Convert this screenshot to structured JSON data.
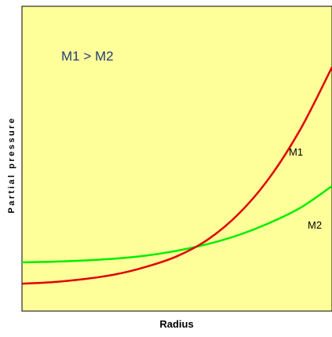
{
  "chart_data": {
    "type": "line",
    "xlabel": "Radius",
    "ylabel": "Partial pressure",
    "annotation": "M1 > M2",
    "background_color": "#ffff99",
    "grid": false,
    "legend": "none",
    "series": [
      {
        "name": "M1",
        "color": "#e00000",
        "x": [
          0.0,
          0.1,
          0.2,
          0.3,
          0.4,
          0.5,
          0.6,
          0.7,
          0.8,
          0.9,
          1.0
        ],
        "y": [
          0.09,
          0.095,
          0.105,
          0.12,
          0.145,
          0.18,
          0.235,
          0.32,
          0.44,
          0.6,
          0.8
        ]
      },
      {
        "name": "M2",
        "color": "#00ee00",
        "x": [
          0.0,
          0.1,
          0.2,
          0.3,
          0.4,
          0.5,
          0.6,
          0.7,
          0.8,
          0.9,
          1.0
        ],
        "y": [
          0.16,
          0.162,
          0.166,
          0.172,
          0.182,
          0.198,
          0.22,
          0.25,
          0.29,
          0.34,
          0.41
        ]
      }
    ]
  }
}
